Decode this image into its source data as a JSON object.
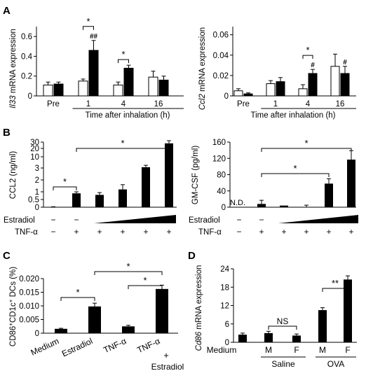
{
  "panel_labels": {
    "A": "A",
    "B": "B",
    "C": "C",
    "D": "D"
  },
  "chart_data": [
    {
      "id": "A1",
      "type": "bar",
      "ylabel_italic": "Il33",
      "ylabel_rest": " mRNA expression",
      "xlabel": "Time after inhalation (h)",
      "categories": [
        "Pre",
        "1",
        "4",
        "16"
      ],
      "yticks": [
        "0",
        "0.2",
        "0.4",
        "0.6"
      ],
      "ylim": [
        0,
        0.7
      ],
      "series": [
        {
          "color": "#ffffff",
          "values": [
            0.11,
            0.15,
            0.11,
            0.19
          ],
          "err": [
            0.03,
            0.02,
            0.03,
            0.06
          ]
        },
        {
          "color": "#000000",
          "values": [
            0.12,
            0.46,
            0.28,
            0.16
          ],
          "err": [
            0.02,
            0.1,
            0.03,
            0.04
          ]
        }
      ],
      "marks": [
        {
          "cat": 1,
          "series": 1,
          "text": "##"
        }
      ],
      "brackets": [
        {
          "cat": 1,
          "text": "*"
        },
        {
          "cat": 2,
          "text": "*"
        }
      ],
      "grid": false,
      "legend": "none"
    },
    {
      "id": "A2",
      "type": "bar",
      "ylabel_italic": "Ccl2",
      "ylabel_rest": " mRNA expression",
      "xlabel": "Time after inhalation (h)",
      "categories": [
        "Pre",
        "1",
        "4",
        "16"
      ],
      "yticks": [
        "0",
        "0.02",
        "0.04",
        "0.06"
      ],
      "ylim": [
        0,
        0.068
      ],
      "series": [
        {
          "color": "#ffffff",
          "values": [
            0.005,
            0.012,
            0.007,
            0.029
          ],
          "err": [
            0.002,
            0.003,
            0.004,
            0.012
          ]
        },
        {
          "color": "#000000",
          "values": [
            0.002,
            0.014,
            0.022,
            0.022
          ],
          "err": [
            0.001,
            0.004,
            0.004,
            0.007
          ]
        }
      ],
      "marks": [
        {
          "cat": 2,
          "series": 1,
          "text": "#"
        },
        {
          "cat": 3,
          "series": 1,
          "text": "#"
        }
      ],
      "brackets": [
        {
          "cat": 2,
          "text": "*"
        }
      ],
      "grid": false,
      "legend": "none"
    },
    {
      "id": "B1",
      "type": "bar",
      "ylabel": "CCL2 (ng/ml)",
      "yticks": [
        "0",
        "0.5",
        "1",
        "2",
        "3",
        "10",
        "20",
        "30"
      ],
      "ylim": [
        0,
        34
      ],
      "values": [
        0.02,
        0.9,
        0.8,
        1.2,
        3.5,
        28
      ],
      "err": [
        0.01,
        0.1,
        0.15,
        0.4,
        1.2,
        4
      ],
      "row_labels": {
        "estradiol": "Estradiol",
        "tnf": "TNF-α"
      },
      "estradiol_signs": [
        "−",
        "−"
      ],
      "tnf_signs": [
        "−",
        "+",
        "+",
        "+",
        "+",
        "+"
      ],
      "annotations": [
        {
          "from": 0,
          "to": 1,
          "text": "*"
        },
        {
          "from": 1,
          "to": 5,
          "text": "*"
        }
      ],
      "grid": false,
      "legend": "none"
    },
    {
      "id": "B2",
      "type": "bar",
      "ylabel": "GM-CSF (pg/ml)",
      "yticks": [
        "0",
        "40",
        "80",
        "120",
        "160"
      ],
      "ylim": [
        0,
        160
      ],
      "values": [
        0,
        8,
        4,
        0,
        58,
        117
      ],
      "err": [
        0,
        9,
        0,
        5,
        12,
        22
      ],
      "nd_label": "N.D.",
      "row_labels": {
        "estradiol": "Estradiol",
        "tnf": "TNF-α"
      },
      "estradiol_signs": [
        "−",
        "−"
      ],
      "tnf_signs": [
        "−",
        "+",
        "+",
        "+",
        "+",
        "+"
      ],
      "annotations": [
        {
          "from": 1,
          "to": 4,
          "text": "*"
        },
        {
          "from": 1,
          "to": 5,
          "text": "*"
        }
      ],
      "grid": false,
      "legend": "none"
    },
    {
      "id": "C",
      "type": "bar",
      "ylabel_pre": "CD86",
      "ylabel_sup1": "+",
      "ylabel_mid": "CD1c",
      "ylabel_sup2": "+",
      "ylabel_post": " DCs (%)",
      "categories": [
        "Medium",
        "Estradiol",
        "TNF-α",
        "TNF-α"
      ],
      "category_extra": [
        "+",
        "Estradiol"
      ],
      "yticks": [
        "0",
        "0.005",
        "0.010",
        "0.015",
        "0.020"
      ],
      "ylim": [
        0,
        0.022
      ],
      "values": [
        0.0016,
        0.0098,
        0.0025,
        0.0162
      ],
      "err": [
        0.0002,
        0.0012,
        0.0004,
        0.0014
      ],
      "annotations": [
        {
          "from": 0,
          "to": 1,
          "text": "*"
        },
        {
          "from": 2,
          "to": 3,
          "text": "*"
        },
        {
          "from": 1,
          "to": 3,
          "text": "*"
        }
      ],
      "grid": false,
      "legend": "none"
    },
    {
      "id": "D",
      "type": "bar",
      "ylabel_italic": "Cd86",
      "ylabel_rest": " mRNA expression",
      "categories": [
        "Medium",
        "M",
        "F",
        "M",
        "F"
      ],
      "groups": [
        "Saline",
        "OVA"
      ],
      "yticks": [
        "0",
        "6",
        "12",
        "18",
        "24"
      ],
      "ylim": [
        0,
        26
      ],
      "values": [
        2.5,
        3.0,
        2.2,
        10.5,
        20.5
      ],
      "err": [
        0.5,
        0.6,
        0.5,
        0.8,
        1.2
      ],
      "annotations": [
        {
          "from": 1,
          "to": 2,
          "text": "NS"
        },
        {
          "from": 3,
          "to": 4,
          "text": "**"
        }
      ],
      "grid": false,
      "legend": "none"
    }
  ]
}
